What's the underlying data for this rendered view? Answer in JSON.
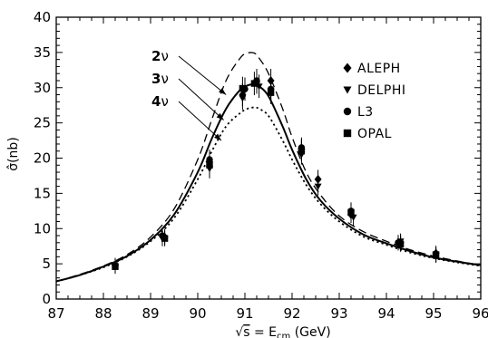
{
  "chart_data": {
    "type": "line",
    "title": "",
    "xlabel": "√s = E_cm (GeV)",
    "xlabel_parts": {
      "root": "√",
      "s": "s",
      "eq": " = E",
      "sub": "cm",
      "unit": " (GeV)"
    },
    "ylabel": "σ̂(nb)",
    "ylabel_parts": {
      "sym": "σ̂",
      "unit": "(nb)"
    },
    "xlim": [
      87,
      96
    ],
    "ylim": [
      0,
      40
    ],
    "xticks": [
      "87",
      "88",
      "89",
      "90",
      "91",
      "92",
      "93",
      "94",
      "95",
      "96"
    ],
    "yticks": [
      "0",
      "5",
      "10",
      "15",
      "20",
      "25",
      "30",
      "35",
      "40"
    ],
    "grid": false,
    "legend": {
      "placement": "top-right",
      "entries": [
        {
          "label": "ALEPH",
          "marker": "diamond"
        },
        {
          "label": "DELPHI",
          "marker": "triangle-down"
        },
        {
          "label": "L3",
          "marker": "circle"
        },
        {
          "label": "OPAL",
          "marker": "square"
        }
      ]
    },
    "curve_labels": [
      {
        "num": "2",
        "sym": "ν",
        "series": "2ν",
        "point_to": [
          90.6,
          29.0
        ]
      },
      {
        "num": "3",
        "sym": "ν",
        "series": "3ν",
        "point_to": [
          90.55,
          25.4
        ]
      },
      {
        "num": "4",
        "sym": "ν",
        "series": "4ν",
        "point_to": [
          90.5,
          22.5
        ]
      }
    ],
    "series": [
      {
        "name": "2ν",
        "style": "dashed",
        "x": [
          87,
          87.5,
          88,
          88.5,
          89,
          89.5,
          90,
          90.3,
          90.6,
          90.9,
          91.05,
          91.2,
          91.3,
          91.5,
          91.8,
          92,
          92.3,
          92.6,
          93,
          93.5,
          94,
          94.5,
          95,
          95.5,
          96
        ],
        "y": [
          2.5,
          3.5,
          4.7,
          6.3,
          8.8,
          12.8,
          19.8,
          25.5,
          31.0,
          34.2,
          34.9,
          34.9,
          34.2,
          32.0,
          27.0,
          23.0,
          18.0,
          14.8,
          11.8,
          9.6,
          8.2,
          7.0,
          6.1,
          5.4,
          4.8
        ]
      },
      {
        "name": "3ν",
        "style": "solid",
        "x": [
          87,
          87.5,
          88,
          88.5,
          89,
          89.5,
          90,
          90.3,
          90.6,
          90.9,
          91.05,
          91.2,
          91.3,
          91.5,
          91.8,
          92,
          92.3,
          92.6,
          93,
          93.5,
          94,
          94.5,
          95,
          95.5,
          96
        ],
        "y": [
          2.5,
          3.4,
          4.6,
          6.1,
          8.4,
          12.0,
          18.0,
          22.8,
          27.0,
          29.7,
          30.3,
          30.5,
          30.2,
          28.8,
          24.5,
          21.2,
          17.0,
          14.0,
          11.4,
          9.2,
          7.9,
          6.8,
          5.9,
          5.3,
          4.8
        ]
      },
      {
        "name": "4ν",
        "style": "dotted",
        "x": [
          87,
          87.5,
          88,
          88.5,
          89,
          89.5,
          90,
          90.3,
          90.6,
          90.9,
          91.05,
          91.2,
          91.3,
          91.5,
          91.8,
          92,
          92.3,
          92.6,
          93,
          93.5,
          94,
          94.5,
          95,
          95.5,
          96
        ],
        "y": [
          2.5,
          3.4,
          4.5,
          6.0,
          8.2,
          11.5,
          17.0,
          21.0,
          24.5,
          26.4,
          27.0,
          27.2,
          27.0,
          26.0,
          22.5,
          19.8,
          16.2,
          13.5,
          11.0,
          8.9,
          7.7,
          6.6,
          5.8,
          5.2,
          4.7
        ]
      }
    ],
    "data_points": [
      {
        "experiment": "ALEPH",
        "marker": "diamond",
        "x": [
          88.25,
          89.3,
          90.25,
          90.95,
          91.25,
          91.55,
          92.2,
          92.55,
          93.25,
          94.3,
          95.05
        ],
        "y": [
          4.8,
          8.8,
          19.5,
          29.0,
          30.8,
          31.0,
          21.3,
          17.0,
          12.0,
          8.0,
          6.5
        ]
      },
      {
        "experiment": "DELPHI",
        "marker": "triangle-down",
        "x": [
          88.25,
          89.25,
          90.25,
          90.95,
          91.3,
          91.55,
          92.2,
          92.55,
          93.3,
          94.3,
          95.05
        ],
        "y": [
          4.7,
          8.6,
          18.5,
          28.5,
          30.2,
          29.5,
          20.5,
          16.0,
          11.6,
          8.2,
          6.2
        ]
      },
      {
        "experiment": "L3",
        "marker": "circle",
        "x": [
          88.25,
          89.25,
          90.25,
          91.0,
          91.25,
          91.55,
          92.2,
          93.25,
          94.25
        ],
        "y": [
          4.8,
          9.0,
          19.8,
          29.8,
          31.0,
          29.8,
          21.5,
          12.5,
          8.0
        ]
      },
      {
        "experiment": "OPAL",
        "marker": "square",
        "x": [
          88.25,
          89.3,
          90.25,
          90.95,
          91.2,
          91.55,
          92.2,
          93.25,
          94.3,
          95.05
        ],
        "y": [
          4.6,
          8.6,
          19.0,
          29.9,
          30.6,
          29.3,
          21.0,
          12.3,
          7.8,
          6.3
        ]
      }
    ]
  }
}
